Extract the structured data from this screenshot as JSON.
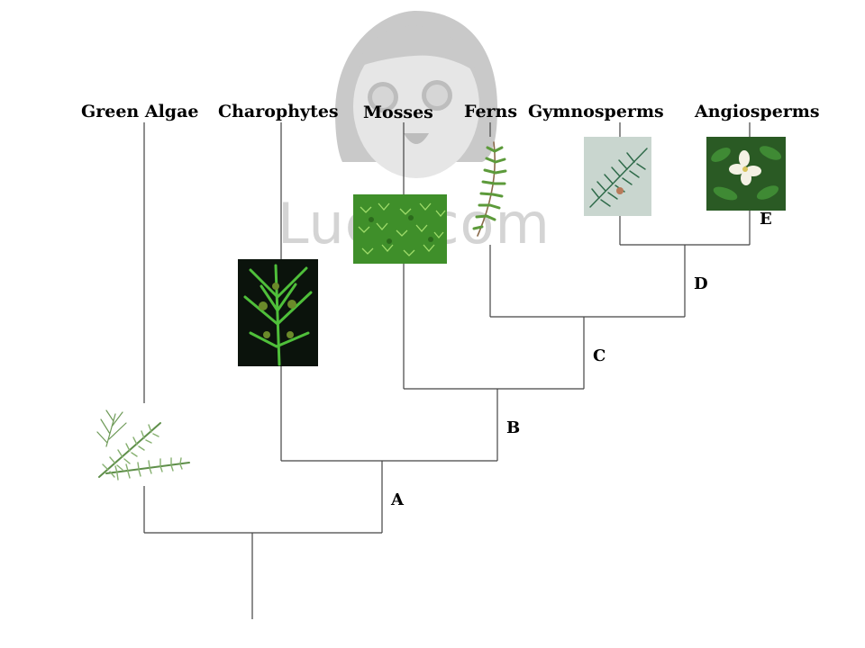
{
  "diagram": {
    "taxa": [
      {
        "id": "green-algae",
        "label": "Green Algae",
        "image": "green-algae-sprig"
      },
      {
        "id": "charophytes",
        "label": "Charophytes",
        "image": "charophyte-photo"
      },
      {
        "id": "mosses",
        "label": "Mosses",
        "image": "moss-photo"
      },
      {
        "id": "ferns",
        "label": "Ferns",
        "image": "fern-frond"
      },
      {
        "id": "gymnosperms",
        "label": "Gymnosperms",
        "image": "conifer-photo"
      },
      {
        "id": "angiosperms",
        "label": "Angiosperms",
        "image": "magnolia-flower-photo"
      }
    ],
    "nodes": [
      {
        "id": "a",
        "label": "A"
      },
      {
        "id": "b",
        "label": "B"
      },
      {
        "id": "c",
        "label": "C"
      },
      {
        "id": "d",
        "label": "D"
      },
      {
        "id": "e",
        "label": "E"
      }
    ],
    "colors": {
      "line": "#444444",
      "watermark": "#d4d4d4"
    }
  },
  "watermark": {
    "text": "Luck.com",
    "icon": "cartoon-face-logo"
  }
}
